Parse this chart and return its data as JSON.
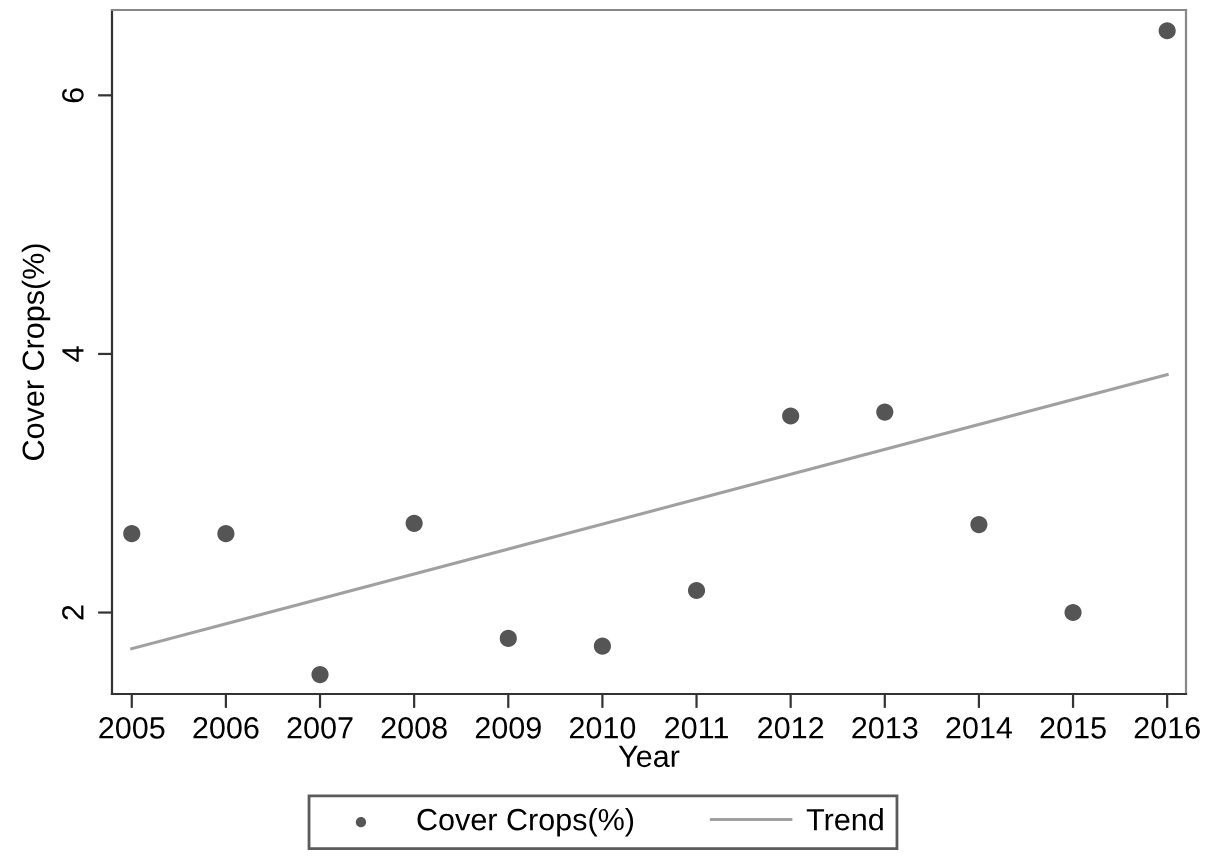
{
  "chart_data": {
    "type": "scatter",
    "xlabel": "Year",
    "ylabel": "Cover Crops(%)",
    "x": [
      2005,
      2006,
      2007,
      2008,
      2009,
      2010,
      2011,
      2012,
      2013,
      2014,
      2015,
      2016
    ],
    "series": [
      {
        "name": "Cover Crops(%)",
        "marker": "circle",
        "color": "#555555",
        "values": [
          2.61,
          2.61,
          1.52,
          2.69,
          1.8,
          1.74,
          2.17,
          3.52,
          3.55,
          2.68,
          2.0,
          6.5
        ]
      },
      {
        "name": "Trend",
        "type": "line",
        "color": "#a0a0a0",
        "x": [
          2005,
          2016
        ],
        "values": [
          1.72,
          3.84
        ]
      }
    ],
    "xlim": [
      2004.79,
      2016.2
    ],
    "ylim": [
      1.37,
      6.66
    ],
    "xticks": [
      2005,
      2006,
      2007,
      2008,
      2009,
      2010,
      2011,
      2012,
      2013,
      2014,
      2015,
      2016
    ],
    "yticks": [
      2,
      4,
      6
    ],
    "grid": false,
    "legend": "bottom"
  }
}
